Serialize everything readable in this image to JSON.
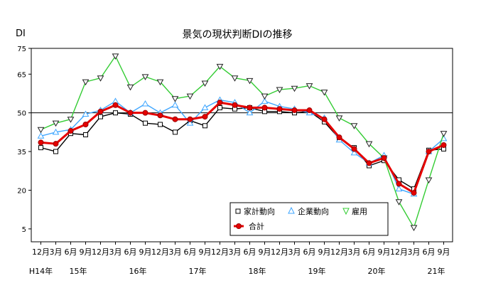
{
  "chart_data": {
    "type": "line",
    "title": "景気の現状判断DIの推移",
    "ylabel": "DI",
    "ylim": [
      0,
      75
    ],
    "yticks": [
      5,
      20,
      35,
      50,
      65,
      75
    ],
    "reference_line": 50,
    "x_tick_labels": [
      "12月",
      "3月",
      "6月",
      "9月",
      "12月",
      "3月",
      "6月",
      "9月",
      "12月",
      "3月",
      "6月",
      "9月",
      "12月",
      "3月",
      "6月",
      "9月",
      "12月",
      "3月",
      "6月",
      "9月",
      "12月",
      "3月",
      "6月",
      "9月",
      "12月",
      "3月",
      "6月",
      "9月"
    ],
    "year_labels": [
      {
        "label": "H14年",
        "at": 0
      },
      {
        "label": "15年",
        "at": 2.5
      },
      {
        "label": "16年",
        "at": 6.5
      },
      {
        "label": "17年",
        "at": 10.5
      },
      {
        "label": "18年",
        "at": 14.5
      },
      {
        "label": "19年",
        "at": 18.5
      },
      {
        "label": "20年",
        "at": 22.5
      },
      {
        "label": "21年",
        "at": 26.5
      }
    ],
    "legend_position": "bottom-right",
    "series": [
      {
        "name": "家計動向",
        "color": "#000000",
        "marker": "square",
        "values": [
          36.5,
          35.0,
          42.0,
          41.5,
          48.5,
          50.0,
          49.5,
          46.0,
          45.5,
          42.5,
          47.0,
          45.0,
          52.0,
          51.5,
          52.0,
          50.5,
          50.5,
          50.0,
          50.5,
          46.5,
          40.0,
          36.5,
          29.5,
          31.5,
          24.0,
          20.5,
          35.5,
          36.0
        ]
      },
      {
        "name": "企業動向",
        "color": "#3fa6ff",
        "marker": "triangle-up",
        "values": [
          41.0,
          42.5,
          43.5,
          49.5,
          51.0,
          54.5,
          50.0,
          53.5,
          50.0,
          53.0,
          46.0,
          52.0,
          55.0,
          54.0,
          50.0,
          54.5,
          52.5,
          51.5,
          50.0,
          48.0,
          39.5,
          34.5,
          30.5,
          33.5,
          20.5,
          18.5,
          35.0,
          40.0
        ]
      },
      {
        "name": "雇用",
        "color": "#33cc33",
        "marker": "triangle-down",
        "values": [
          43.5,
          46.0,
          47.5,
          62.0,
          63.5,
          72.0,
          60.0,
          64.0,
          62.0,
          55.5,
          56.5,
          61.5,
          68.0,
          63.5,
          62.5,
          56.5,
          59.0,
          59.5,
          60.5,
          58.0,
          48.0,
          45.0,
          38.0,
          32.5,
          15.5,
          5.5,
          24.0,
          42.0
        ]
      },
      {
        "name": "合計",
        "color": "#e60000",
        "marker": "circle",
        "values": [
          38.5,
          38.0,
          43.0,
          45.5,
          50.5,
          53.0,
          50.0,
          50.0,
          49.0,
          47.5,
          47.5,
          48.5,
          54.0,
          53.0,
          52.0,
          52.0,
          51.5,
          51.0,
          51.0,
          47.5,
          40.5,
          36.0,
          30.5,
          32.5,
          22.5,
          19.0,
          35.0,
          37.5
        ]
      }
    ]
  }
}
